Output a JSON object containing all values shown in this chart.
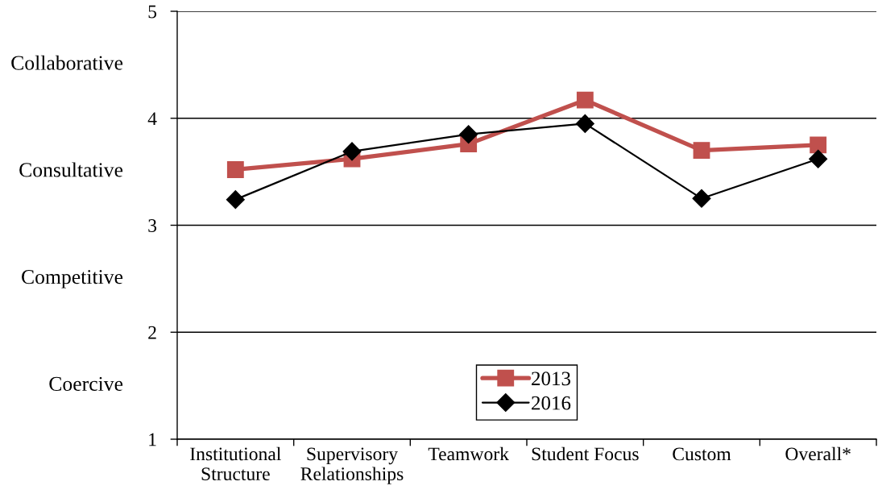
{
  "chart_data": {
    "type": "line",
    "categories": [
      "Institutional\nStructure",
      "Supervisory\nRelationships",
      "Teamwork",
      "Student Focus",
      "Custom",
      "Overall*"
    ],
    "series": [
      {
        "name": "2013",
        "color": "#c0504d",
        "marker": "square",
        "line_style": "solid",
        "values": [
          3.52,
          3.62,
          3.76,
          4.17,
          3.7,
          3.75
        ]
      },
      {
        "name": "2016",
        "color": "#000000",
        "marker": "diamond",
        "line_style": "solid",
        "values": [
          3.24,
          3.69,
          3.85,
          3.95,
          3.25,
          3.62
        ]
      }
    ],
    "ylim": [
      1,
      5
    ],
    "yticks": [
      1,
      2,
      3,
      4,
      5
    ],
    "annotations": [
      "Collaborative",
      "Consultative",
      "Competitive",
      "Coercive"
    ],
    "grid": "y",
    "legend": "bottom"
  }
}
